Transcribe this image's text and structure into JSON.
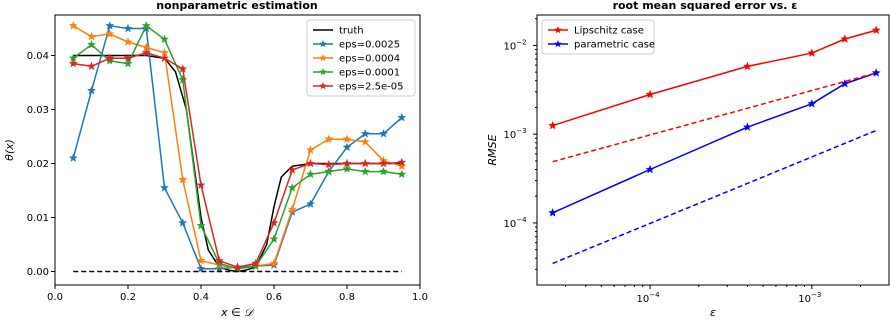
{
  "chart_data": [
    {
      "type": "line",
      "title": "nonparametric estimation",
      "xlabel": "x ∈ 𝒟",
      "ylabel": "θ(x)",
      "xlim": [
        0.0,
        1.0
      ],
      "ylim": [
        -0.0025,
        0.0475
      ],
      "xticks": [
        "0.0",
        "0.2",
        "0.4",
        "0.6",
        "0.8",
        "1.0"
      ],
      "yticks": [
        "0.00",
        "0.01",
        "0.02",
        "0.03",
        "0.04"
      ],
      "grid": false,
      "legend_position": "top-right",
      "series": [
        {
          "name": "truth",
          "color": "#000000",
          "marker": "none",
          "x": [
            0.05,
            0.15,
            0.25,
            0.3,
            0.33,
            0.36,
            0.38,
            0.4,
            0.42,
            0.45,
            0.48,
            0.5,
            0.52,
            0.55,
            0.58,
            0.6,
            0.62,
            0.65,
            0.7,
            0.8,
            0.95
          ],
          "y": [
            0.04,
            0.04,
            0.04,
            0.0395,
            0.037,
            0.03,
            0.02,
            0.01,
            0.004,
            0.0008,
            0.0002,
            0.0,
            0.0002,
            0.0008,
            0.005,
            0.012,
            0.0175,
            0.0195,
            0.02,
            0.02,
            0.02
          ]
        },
        {
          "name": "eps=0.0025",
          "color": "#1f77b4",
          "marker": "star",
          "x": [
            0.05,
            0.1,
            0.15,
            0.2,
            0.25,
            0.3,
            0.35,
            0.4,
            0.45,
            0.5,
            0.55,
            0.6,
            0.65,
            0.7,
            0.75,
            0.8,
            0.85,
            0.9,
            0.95
          ],
          "y": [
            0.021,
            0.0335,
            0.0455,
            0.045,
            0.045,
            0.0155,
            0.009,
            0.0005,
            0.0005,
            0.0008,
            0.001,
            0.0012,
            0.011,
            0.0125,
            0.0185,
            0.023,
            0.0255,
            0.0255,
            0.0285
          ]
        },
        {
          "name": "eps=0.0004",
          "color": "#ff7f0e",
          "marker": "star",
          "x": [
            0.05,
            0.1,
            0.15,
            0.2,
            0.25,
            0.3,
            0.35,
            0.4,
            0.45,
            0.5,
            0.55,
            0.6,
            0.65,
            0.7,
            0.75,
            0.8,
            0.85,
            0.9,
            0.95
          ],
          "y": [
            0.0455,
            0.0435,
            0.044,
            0.0425,
            0.0415,
            0.0405,
            0.017,
            0.002,
            0.0012,
            0.0005,
            0.001,
            0.0015,
            0.0115,
            0.0225,
            0.0245,
            0.0245,
            0.024,
            0.0205,
            0.0195
          ]
        },
        {
          "name": "eps=0.0001",
          "color": "#2ca02c",
          "marker": "star",
          "x": [
            0.05,
            0.1,
            0.15,
            0.2,
            0.25,
            0.3,
            0.35,
            0.4,
            0.45,
            0.5,
            0.55,
            0.6,
            0.65,
            0.7,
            0.75,
            0.8,
            0.85,
            0.9,
            0.95
          ],
          "y": [
            0.0395,
            0.042,
            0.039,
            0.0385,
            0.0455,
            0.043,
            0.0355,
            0.0085,
            0.0015,
            0.0005,
            0.001,
            0.006,
            0.0155,
            0.018,
            0.0185,
            0.019,
            0.0185,
            0.0185,
            0.018
          ]
        },
        {
          "name": "eps=2.5e-05",
          "color": "#d62728",
          "marker": "star",
          "x": [
            0.05,
            0.1,
            0.15,
            0.2,
            0.25,
            0.3,
            0.35,
            0.4,
            0.45,
            0.5,
            0.55,
            0.6,
            0.65,
            0.7,
            0.75,
            0.8,
            0.85,
            0.9,
            0.95
          ],
          "y": [
            0.0385,
            0.038,
            0.0395,
            0.0395,
            0.0405,
            0.0395,
            0.0375,
            0.016,
            0.002,
            0.0008,
            0.0015,
            0.009,
            0.0188,
            0.02,
            0.0198,
            0.02,
            0.02,
            0.02,
            0.0202
          ]
        },
        {
          "name": "",
          "color": "#000000",
          "marker": "none",
          "dashed": true,
          "x": [
            0.05,
            0.95
          ],
          "y": [
            0.0,
            0.0
          ]
        }
      ]
    },
    {
      "type": "line",
      "title": "root mean squared error vs. ε",
      "xlabel": "ε",
      "ylabel": "RMSE",
      "xscale": "log",
      "yscale": "log",
      "xlim": [
        2e-05,
        0.003
      ],
      "ylim": [
        2e-05,
        0.022
      ],
      "xticks": [
        {
          "value": 0.0001,
          "label": "10"
        },
        {
          "value": 0.001,
          "label": "10"
        }
      ],
      "xtick_exponents": [
        "−4",
        "−3"
      ],
      "yticks": [
        {
          "value": 0.0001,
          "label": "10"
        },
        {
          "value": 0.001,
          "label": "10"
        },
        {
          "value": 0.01,
          "label": "10"
        }
      ],
      "ytick_exponents": [
        "−4",
        "−3",
        "−2"
      ],
      "grid": false,
      "legend_position": "top-left",
      "series": [
        {
          "name": "Lipschitz case",
          "color": "#ff0000",
          "marker": "star",
          "x": [
            2.5e-05,
            0.0001,
            0.0004,
            0.001,
            0.0016,
            0.0025
          ],
          "y": [
            0.00125,
            0.0028,
            0.0058,
            0.0082,
            0.0118,
            0.0148
          ]
        },
        {
          "name": "parametric case",
          "color": "#0000ff",
          "marker": "star",
          "x": [
            2.5e-05,
            0.0001,
            0.0004,
            0.001,
            0.0016,
            0.0025
          ],
          "y": [
            0.00013,
            0.0004,
            0.0012,
            0.0022,
            0.0037,
            0.0049
          ]
        },
        {
          "name": "",
          "color": "#ff0000",
          "marker": "none",
          "dashed": true,
          "x": [
            2.5e-05,
            0.0025
          ],
          "y": [
            0.00049,
            0.0049
          ]
        },
        {
          "name": "",
          "color": "#0000ff",
          "marker": "none",
          "dashed": true,
          "x": [
            2.5e-05,
            0.0025
          ],
          "y": [
            3.5e-05,
            0.0011
          ]
        }
      ]
    }
  ]
}
